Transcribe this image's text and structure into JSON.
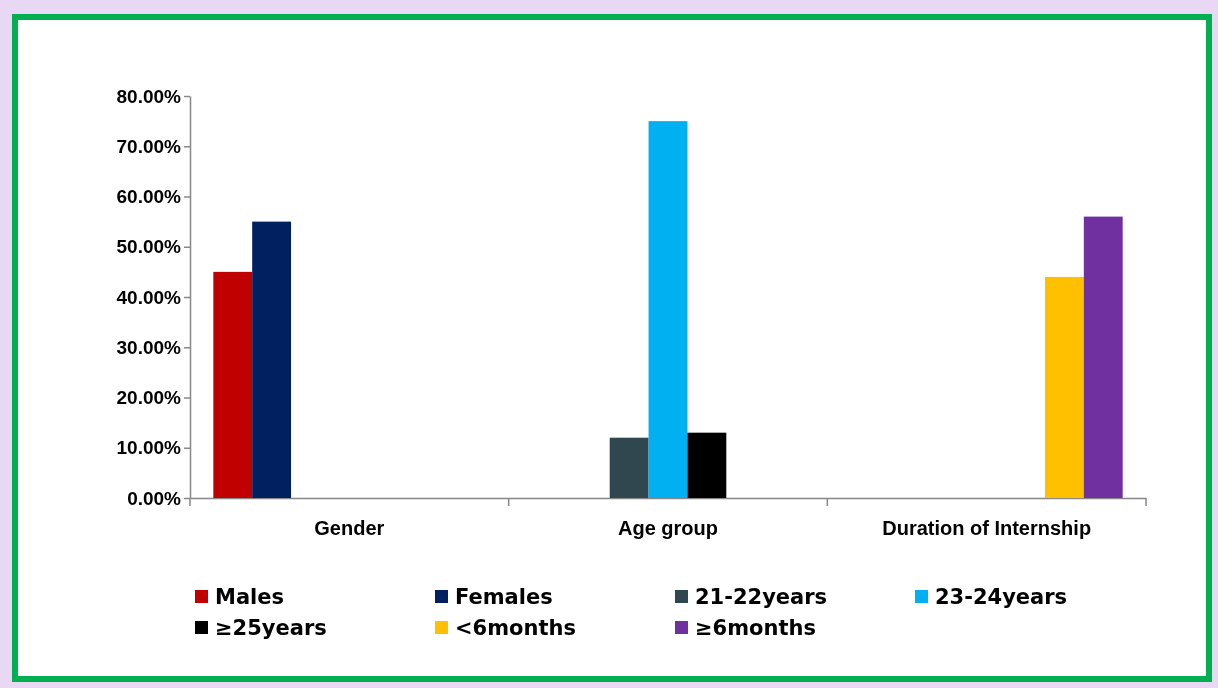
{
  "chart_data": {
    "type": "bar",
    "categories": [
      "Gender",
      "Age group",
      "Duration of Internship"
    ],
    "series": [
      {
        "name": "Males",
        "color": "#c00000",
        "values": [
          45,
          null,
          null
        ]
      },
      {
        "name": "Females",
        "color": "#002060",
        "values": [
          55,
          null,
          null
        ]
      },
      {
        "name": "21-22years",
        "color": "#31474f",
        "values": [
          null,
          12,
          null
        ]
      },
      {
        "name": "23-24years",
        "color": "#00b0f0",
        "values": [
          null,
          75,
          null
        ]
      },
      {
        "name": "≥25years",
        "color": "#000000",
        "values": [
          null,
          13,
          null
        ]
      },
      {
        "name": "<6months",
        "color": "#ffc000",
        "values": [
          null,
          null,
          44
        ]
      },
      {
        "name": "≥6months",
        "color": "#7030a0",
        "values": [
          null,
          null,
          56
        ]
      }
    ],
    "ylim": [
      0,
      80
    ],
    "yticks": [
      {
        "value": 0,
        "label": "0.00%"
      },
      {
        "value": 10,
        "label": "10.00%"
      },
      {
        "value": 20,
        "label": "20.00%"
      },
      {
        "value": 30,
        "label": "30.00%"
      },
      {
        "value": 40,
        "label": "40.00%"
      },
      {
        "value": 50,
        "label": "50.00%"
      },
      {
        "value": 60,
        "label": "60.00%"
      },
      {
        "value": 70,
        "label": "70.00%"
      },
      {
        "value": 80,
        "label": "80.00%"
      }
    ],
    "grid": false,
    "legend": "bottom"
  }
}
